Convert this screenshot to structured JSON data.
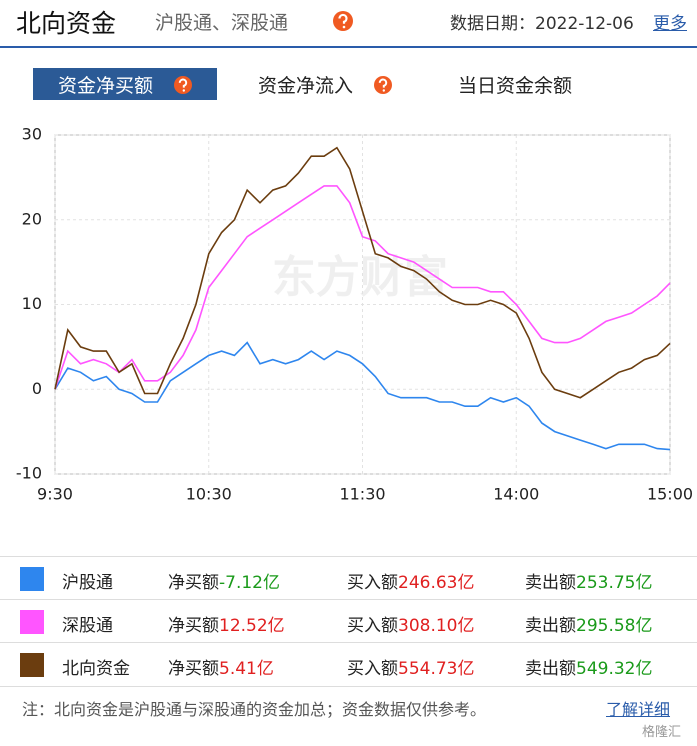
{
  "header": {
    "title": "北向资金",
    "subtitle": "沪股通、深股通",
    "date": "数据日期：2022-12-06",
    "more": "更多"
  },
  "tabs": [
    "资金净买额",
    "资金净流入",
    "当日资金余额"
  ],
  "chart_data": {
    "type": "line",
    "watermark": "东方财富",
    "x": [
      0,
      5,
      10,
      15,
      20,
      25,
      30,
      35,
      40,
      45,
      50,
      55,
      60,
      65,
      70,
      75,
      80,
      85,
      90,
      95,
      100,
      105,
      110,
      115,
      120,
      125,
      130,
      135,
      140,
      145,
      150,
      155,
      160,
      165,
      170,
      175,
      180,
      185,
      190,
      195,
      200,
      205,
      210,
      215,
      220,
      225,
      230,
      235,
      240
    ],
    "xlim": [
      0,
      240
    ],
    "xticks": [
      {
        "value": 0,
        "label": "9:30"
      },
      {
        "value": 60,
        "label": "10:30"
      },
      {
        "value": 120,
        "label": "11:30"
      },
      {
        "value": 180,
        "label": "14:00"
      },
      {
        "value": 240,
        "label": "15:00"
      }
    ],
    "ylim": [
      -10,
      30
    ],
    "yticks": [
      -10,
      0,
      10,
      20,
      30
    ],
    "grid": true,
    "series": [
      {
        "name": "沪股通",
        "color": "#2e86ee",
        "values": [
          0,
          2.5,
          2,
          1,
          1.5,
          0,
          -0.5,
          -1.5,
          -1.5,
          1,
          2,
          3,
          4,
          4.5,
          4,
          5.5,
          3,
          3.5,
          3,
          3.5,
          4.5,
          3.5,
          4.5,
          4,
          3,
          1.5,
          -0.5,
          -1,
          -1,
          -1,
          -1.5,
          -1.5,
          -2,
          -2,
          -1,
          -1.5,
          -1,
          -2,
          -4,
          -5,
          -5.5,
          -6,
          -6.5,
          -7,
          -6.5,
          -6.5,
          -6.5,
          -7,
          -7.12
        ]
      },
      {
        "name": "深股通",
        "color": "#ff55ff",
        "values": [
          0,
          4.5,
          3,
          3.5,
          3,
          2,
          3.5,
          1,
          1,
          2,
          4,
          7,
          12,
          14,
          16,
          18,
          19,
          20,
          21,
          22,
          23,
          24,
          24,
          22,
          18,
          17.5,
          16,
          15.5,
          15,
          14,
          13,
          12,
          12,
          12,
          11.5,
          11.5,
          10,
          8,
          6,
          5.5,
          5.5,
          6,
          7,
          8,
          8.5,
          9,
          10,
          11,
          12.52
        ]
      },
      {
        "name": "北向资金",
        "color": "#6b3d0f",
        "values": [
          0,
          7,
          5,
          4.5,
          4.5,
          2,
          3,
          -0.5,
          -0.5,
          3,
          6,
          10,
          16,
          18.5,
          20,
          23.5,
          22,
          23.5,
          24,
          25.5,
          27.5,
          27.5,
          28.5,
          26,
          21,
          16,
          15.5,
          14.5,
          14,
          13,
          11.5,
          10.5,
          10,
          10,
          10.5,
          10,
          9,
          6,
          2,
          0,
          -0.5,
          -1,
          0,
          1,
          2,
          2.5,
          3.5,
          4,
          5.41
        ]
      }
    ]
  },
  "table": {
    "rows": [
      [
        "净买额",
        "-7.12亿",
        "买入额",
        "246.63亿",
        "卖出额",
        "253.75亿"
      ],
      [
        "净买额",
        "12.52亿",
        "买入额",
        "308.10亿",
        "卖出额",
        "295.58亿"
      ],
      [
        "净买额",
        "5.41亿",
        "买入额",
        "554.73亿",
        "卖出额",
        "549.32亿"
      ]
    ]
  },
  "note": "注：北向资金是沪股通与深股通的资金加总；资金数据仅供参考。",
  "note_link": "了解详细",
  "corner_mark": "格隆汇"
}
